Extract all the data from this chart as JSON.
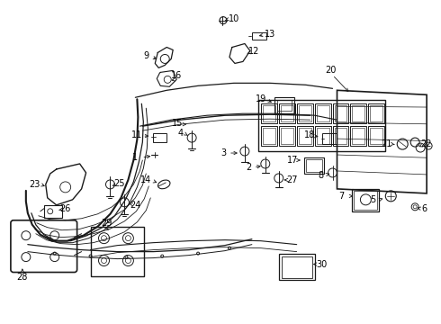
{
  "bg_color": "#ffffff",
  "fig_width": 4.9,
  "fig_height": 3.6,
  "dpi": 100,
  "line_color": "#1a1a1a",
  "label_color": "#000000",
  "label_fontsize": 7.0
}
